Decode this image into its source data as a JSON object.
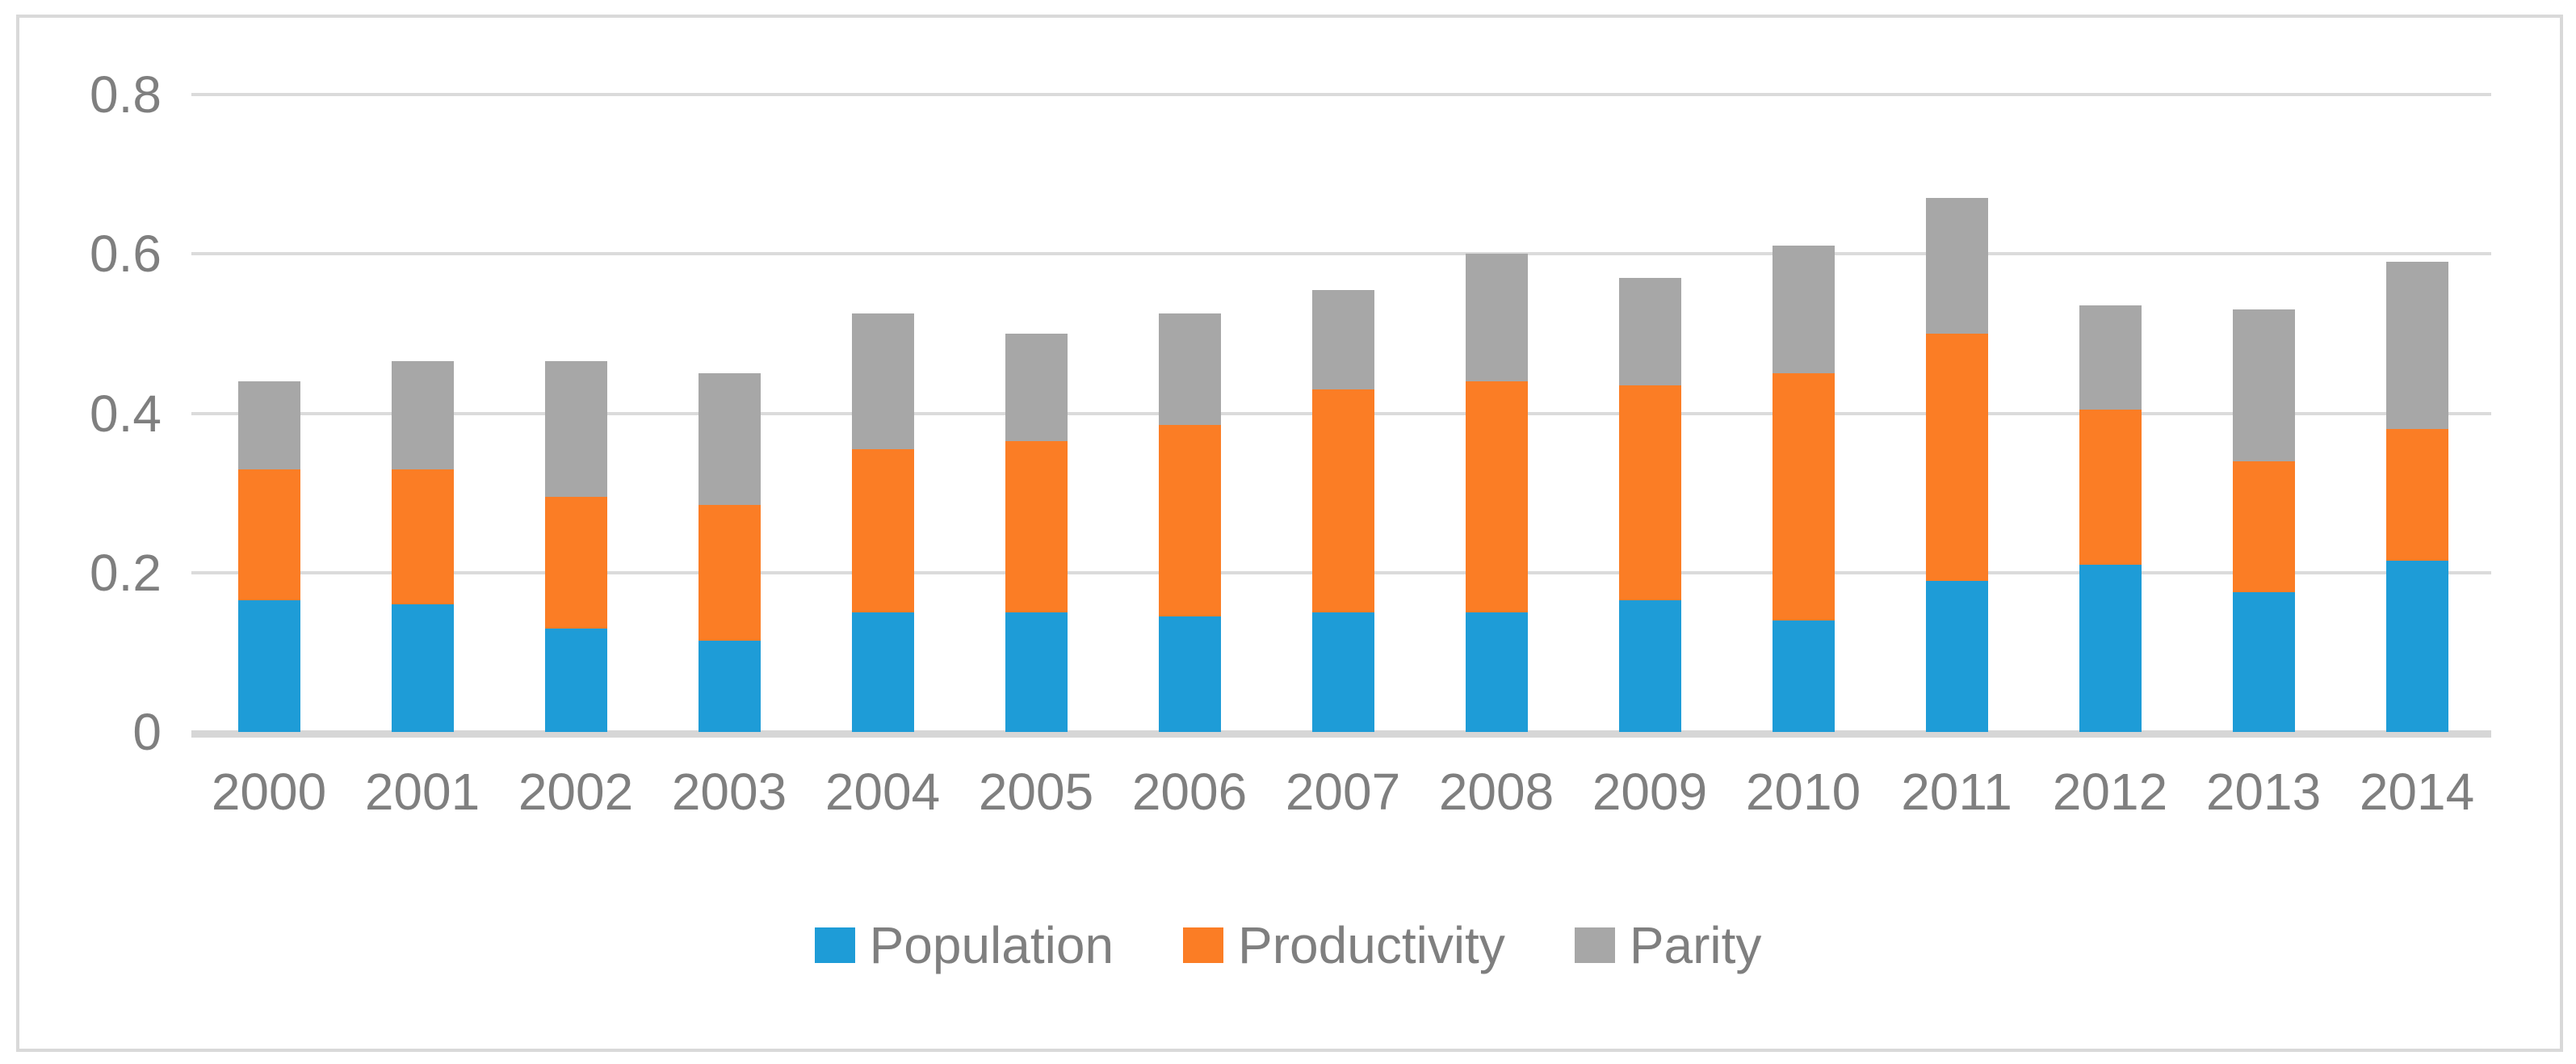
{
  "chart_data": {
    "type": "bar",
    "stacked": true,
    "title": "",
    "xlabel": "",
    "ylabel": "",
    "categories": [
      "2000",
      "2001",
      "2002",
      "2003",
      "2004",
      "2005",
      "2006",
      "2007",
      "2008",
      "2009",
      "2010",
      "2011",
      "2012",
      "2013",
      "2014"
    ],
    "series": [
      {
        "name": "Population",
        "color": "#1e9cd7",
        "values": [
          0.165,
          0.16,
          0.13,
          0.115,
          0.15,
          0.15,
          0.145,
          0.15,
          0.15,
          0.165,
          0.14,
          0.19,
          0.21,
          0.175,
          0.215
        ]
      },
      {
        "name": "Productivity",
        "color": "#fb7d25",
        "values": [
          0.165,
          0.17,
          0.165,
          0.17,
          0.205,
          0.215,
          0.24,
          0.28,
          0.29,
          0.27,
          0.31,
          0.31,
          0.195,
          0.165,
          0.165
        ]
      },
      {
        "name": "Parity",
        "color": "#a7a7a7",
        "values": [
          0.11,
          0.135,
          0.17,
          0.165,
          0.17,
          0.135,
          0.14,
          0.125,
          0.16,
          0.135,
          0.16,
          0.17,
          0.13,
          0.19,
          0.21
        ]
      }
    ],
    "stack_totals": [
      0.44,
      0.465,
      0.465,
      0.45,
      0.525,
      0.5,
      0.525,
      0.555,
      0.6,
      0.57,
      0.61,
      0.67,
      0.535,
      0.53,
      0.59
    ],
    "ylim": [
      0,
      0.8
    ],
    "yticks": [
      0,
      0.2,
      0.4,
      0.6,
      0.8
    ],
    "ytick_labels": [
      "0",
      "0.2",
      "0.4",
      "0.6",
      "0.8"
    ],
    "grid": true,
    "legend_position": "bottom",
    "colors": {
      "gridline": "#dbdbdb",
      "axis_line": "#d6d6d6",
      "frame_border": "#d9d9d9",
      "tick_text": "#7f7f7f",
      "legend_text": "#7f7f7f",
      "background": "#ffffff"
    }
  }
}
